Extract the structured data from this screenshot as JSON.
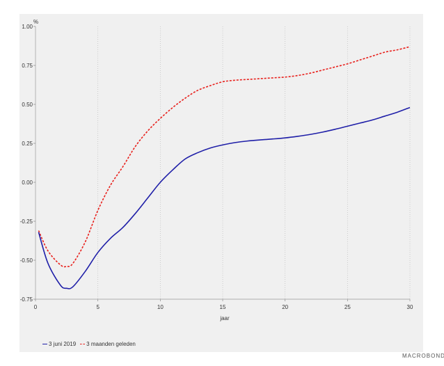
{
  "chart_data": {
    "type": "line",
    "ylabel": "%",
    "xlabel": "jaar",
    "xlim": [
      0,
      30
    ],
    "ylim": [
      -0.75,
      1.0
    ],
    "x_ticks": [
      "0",
      "5",
      "10",
      "15",
      "20",
      "25",
      "30"
    ],
    "y_ticks": [
      "1.00",
      "0.75",
      "0.50",
      "0.25",
      "0.00",
      "-0.25",
      "-0.50",
      "-0.75"
    ],
    "grid": "vertical",
    "legend_position": "bottom-left",
    "series": [
      {
        "name": "3 juni 2019",
        "color": "#1f1fa8",
        "style": "solid",
        "x": [
          0.25,
          1,
          2,
          2.5,
          3,
          4,
          5,
          6,
          7,
          8,
          9,
          10,
          11,
          12,
          13,
          14,
          15,
          16,
          17,
          18,
          19,
          20,
          21,
          22,
          23,
          24,
          25,
          26,
          27,
          28,
          29,
          30
        ],
        "y": [
          -0.32,
          -0.52,
          -0.66,
          -0.68,
          -0.67,
          -0.57,
          -0.45,
          -0.36,
          -0.29,
          -0.2,
          -0.1,
          0.0,
          0.08,
          0.15,
          0.19,
          0.22,
          0.24,
          0.255,
          0.265,
          0.272,
          0.278,
          0.285,
          0.295,
          0.307,
          0.322,
          0.34,
          0.36,
          0.38,
          0.4,
          0.425,
          0.45,
          0.48
        ]
      },
      {
        "name": "3 maanden geleden",
        "color": "#e8201c",
        "style": "dashed",
        "x": [
          0.25,
          1,
          2,
          2.5,
          3,
          4,
          5,
          6,
          7,
          8,
          9,
          10,
          11,
          12,
          13,
          14,
          15,
          16,
          17,
          18,
          19,
          20,
          21,
          22,
          23,
          24,
          25,
          26,
          27,
          28,
          29,
          30
        ],
        "y": [
          -0.31,
          -0.44,
          -0.53,
          -0.54,
          -0.52,
          -0.38,
          -0.18,
          -0.02,
          0.1,
          0.23,
          0.33,
          0.41,
          0.48,
          0.54,
          0.59,
          0.62,
          0.645,
          0.655,
          0.66,
          0.665,
          0.67,
          0.675,
          0.685,
          0.7,
          0.72,
          0.74,
          0.76,
          0.785,
          0.81,
          0.835,
          0.85,
          0.87
        ]
      }
    ]
  },
  "brand": "MACROBOND"
}
